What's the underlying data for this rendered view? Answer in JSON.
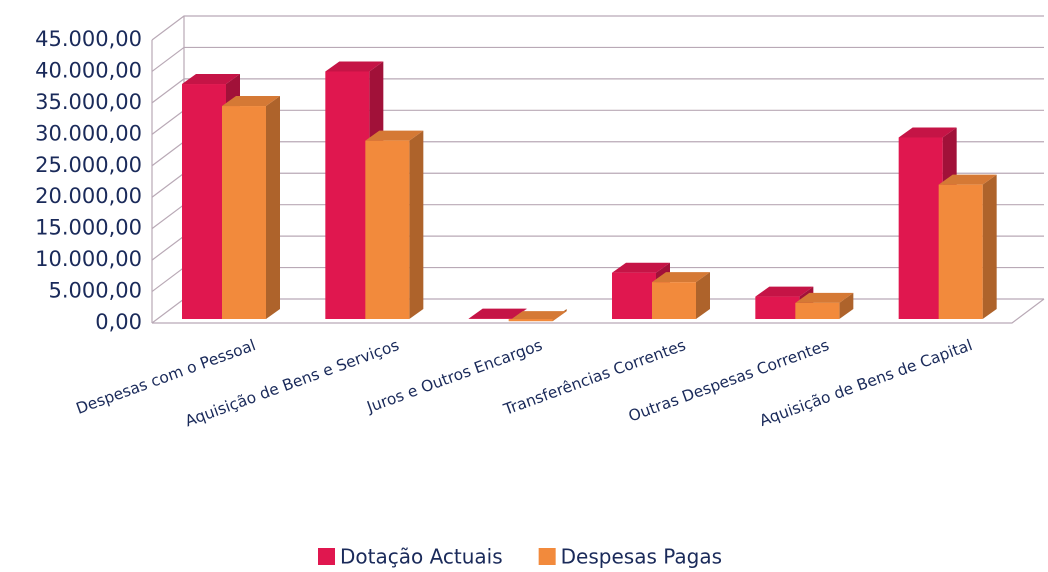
{
  "chart_data": {
    "type": "bar3d",
    "categories": [
      "Despesas com o Pessoal",
      "Aquisição de Bens e Serviços",
      "Juros e Outros Encargos",
      "Transferências Correntes",
      "Outras Despesas Correntes",
      "Aquisição de Bens de Capital"
    ],
    "series": [
      {
        "name": "Dotação Actuais",
        "color": "#e0174f",
        "values": [
          38000,
          40000,
          700,
          8000,
          4200,
          29500
        ]
      },
      {
        "name": "Despesas Pagas",
        "color": "#f28a3c",
        "values": [
          34500,
          29000,
          300,
          6500,
          3200,
          22000
        ]
      }
    ],
    "ylim": [
      0,
      45000
    ],
    "yticks": [
      {
        "value": 0,
        "label": "0,00"
      },
      {
        "value": 5000,
        "label": "5.000,00"
      },
      {
        "value": 10000,
        "label": "10.000,00"
      },
      {
        "value": 15000,
        "label": "15.000,00"
      },
      {
        "value": 20000,
        "label": "20.000,00"
      },
      {
        "value": 25000,
        "label": "25.000,00"
      },
      {
        "value": 30000,
        "label": "30.000,00"
      },
      {
        "value": 35000,
        "label": "35.000,00"
      },
      {
        "value": 40000,
        "label": "40.000,00"
      },
      {
        "value": 45000,
        "label": "45.000,00"
      }
    ],
    "grid": true,
    "legend": "bottom"
  }
}
